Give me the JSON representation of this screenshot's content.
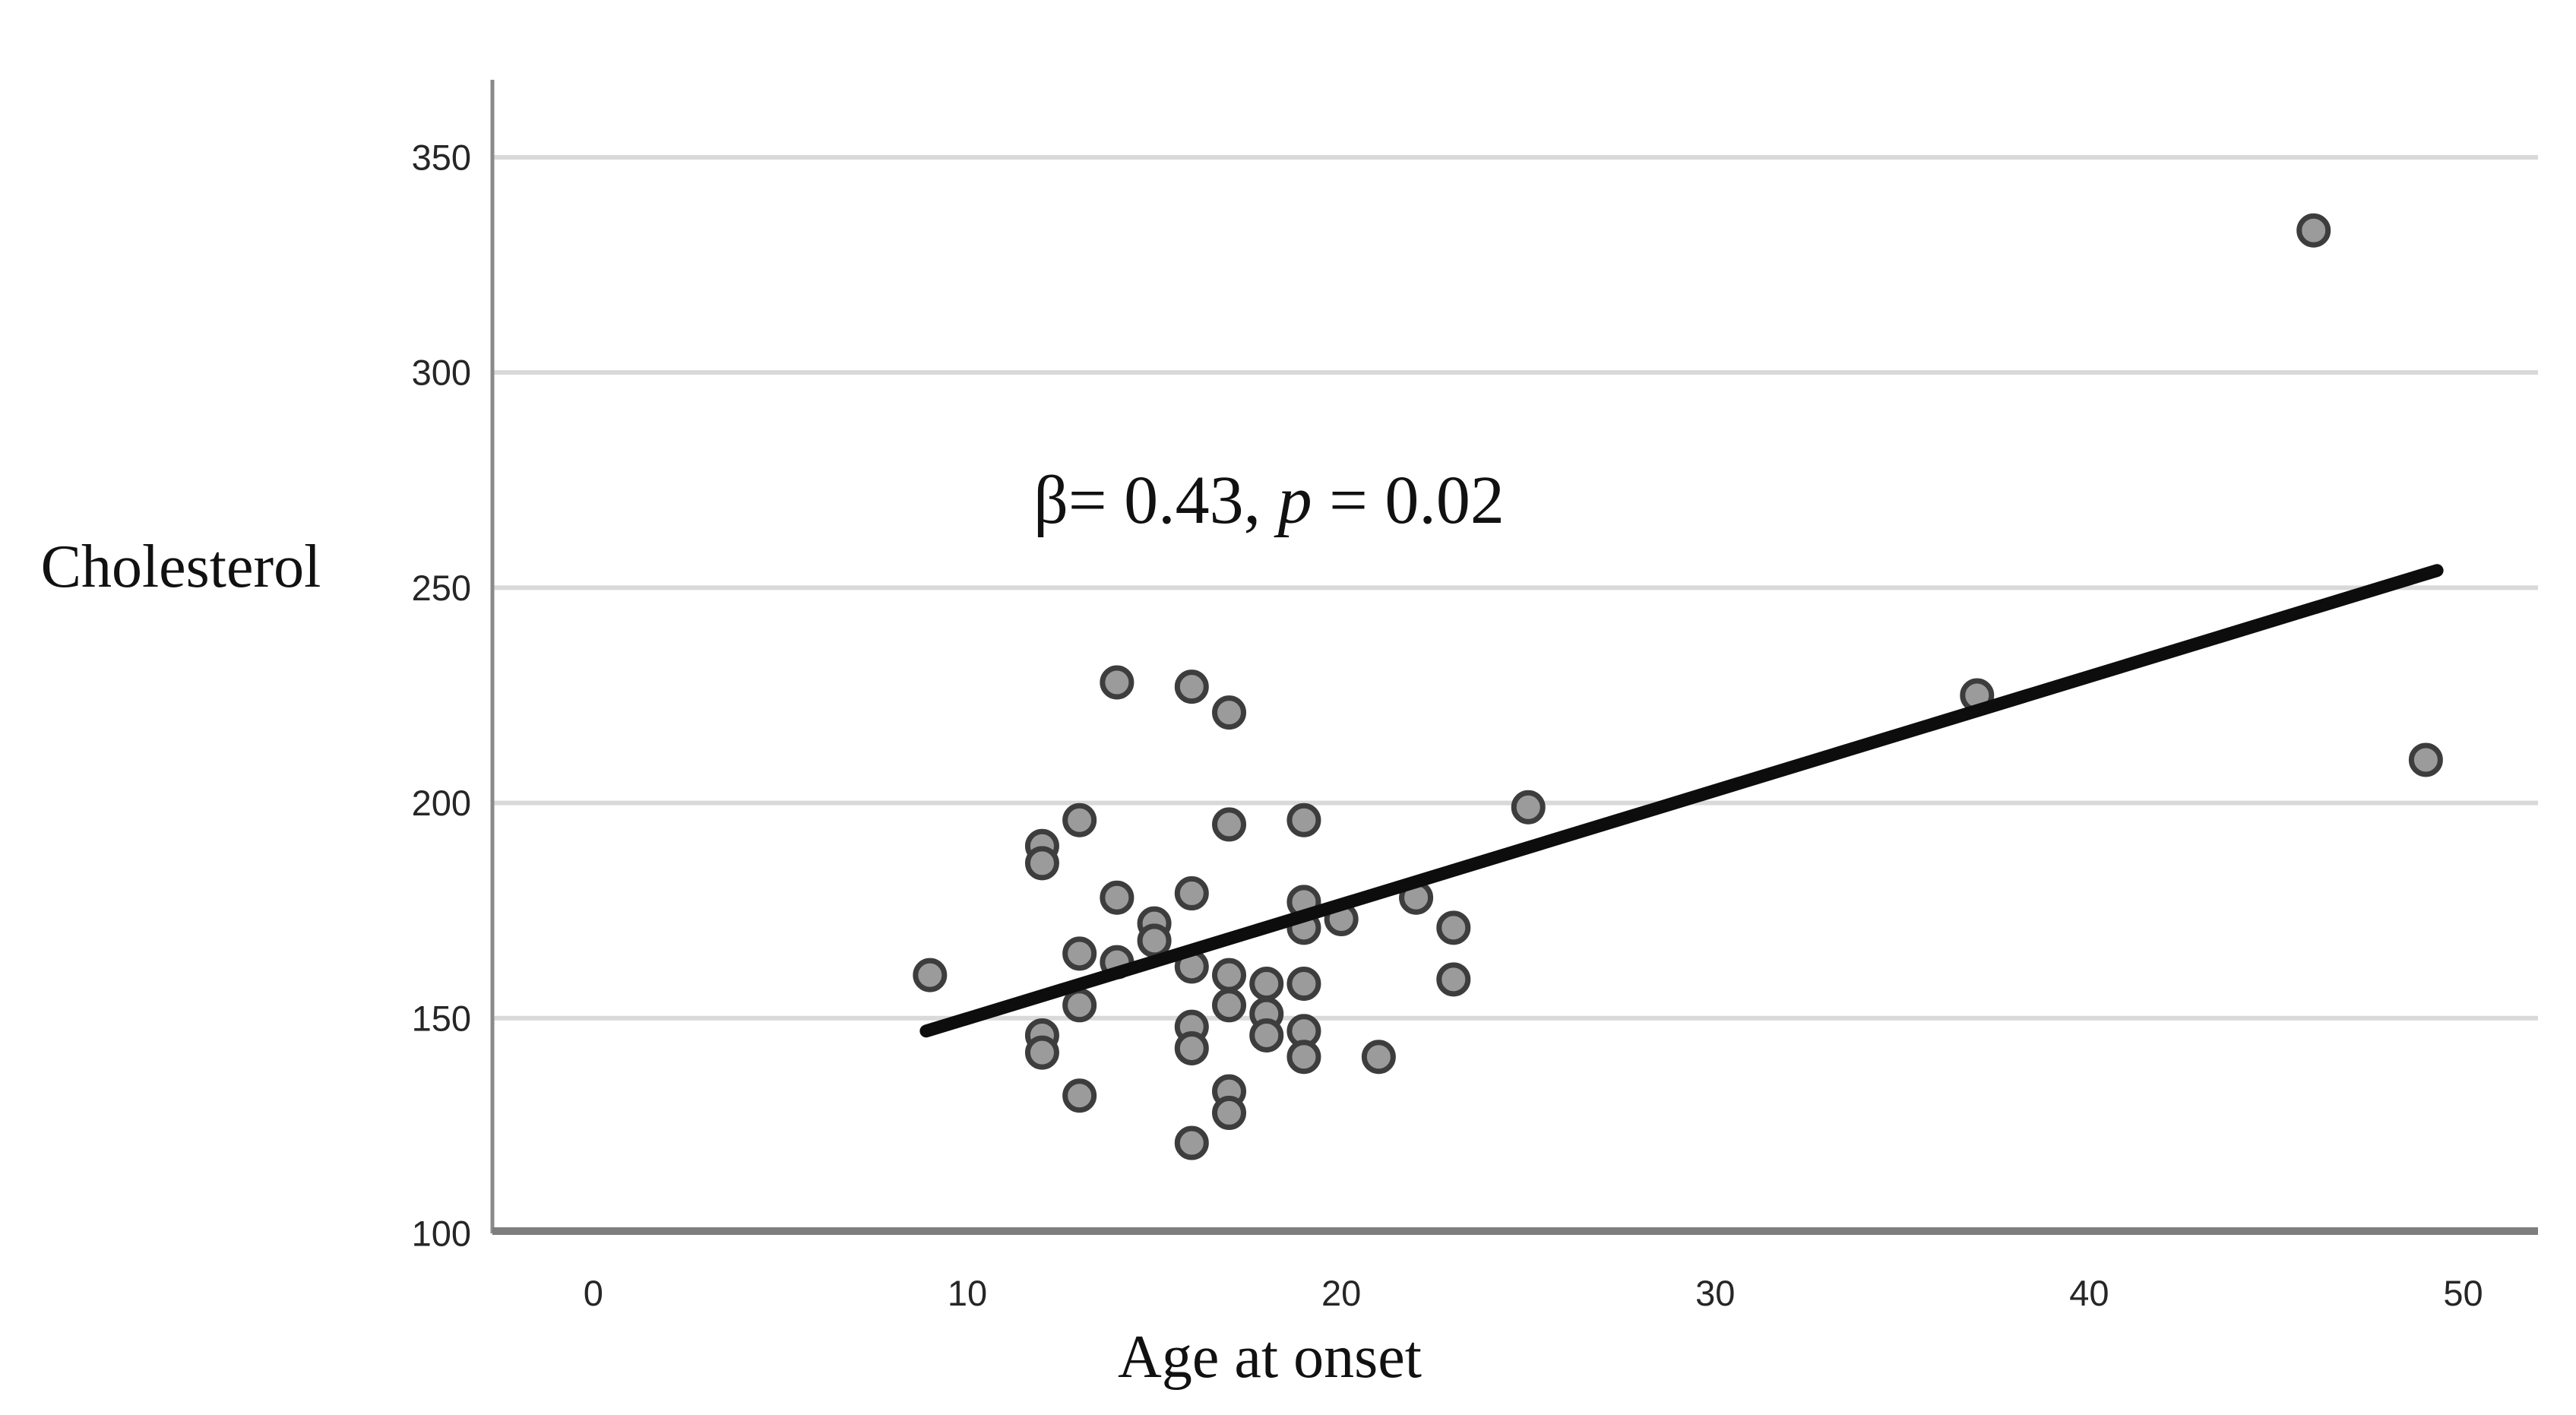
{
  "chart_data": {
    "type": "scatter",
    "title": "",
    "xlabel": "Age at onset",
    "ylabel": "Cholesterol",
    "annotation": {
      "full_text": "β= 0.43, p = 0.02",
      "beta_part": "β= 0.43, ",
      "p_part": "p",
      "value_part": " = 0.02"
    },
    "x_ticks": [
      0,
      10,
      20,
      30,
      40,
      50
    ],
    "y_ticks": [
      100,
      150,
      200,
      250,
      300,
      350
    ],
    "xlim": [
      -2.7,
      52.0
    ],
    "ylim": [
      100,
      368
    ],
    "grid": "horizontal gridlines only",
    "legend": "none",
    "points": [
      [
        9,
        160
      ],
      [
        12,
        190
      ],
      [
        12,
        186
      ],
      [
        12,
        146
      ],
      [
        12,
        142
      ],
      [
        13,
        196
      ],
      [
        13,
        165
      ],
      [
        13,
        153
      ],
      [
        13,
        132
      ],
      [
        14,
        228
      ],
      [
        14,
        178
      ],
      [
        14,
        163
      ],
      [
        15,
        172
      ],
      [
        15,
        168
      ],
      [
        16,
        227
      ],
      [
        16,
        179
      ],
      [
        16,
        162
      ],
      [
        16,
        148
      ],
      [
        16,
        143
      ],
      [
        16,
        121
      ],
      [
        17,
        221
      ],
      [
        17,
        195
      ],
      [
        17,
        160
      ],
      [
        17,
        153
      ],
      [
        17,
        133
      ],
      [
        17,
        128
      ],
      [
        18,
        158
      ],
      [
        18,
        151
      ],
      [
        18,
        146
      ],
      [
        19,
        196
      ],
      [
        19,
        177
      ],
      [
        19,
        171
      ],
      [
        19,
        158
      ],
      [
        19,
        147
      ],
      [
        19,
        141
      ],
      [
        20,
        173
      ],
      [
        21,
        141
      ],
      [
        22,
        178
      ],
      [
        23,
        171
      ],
      [
        23,
        159
      ],
      [
        25,
        199
      ],
      [
        37,
        225
      ],
      [
        46,
        333
      ],
      [
        49,
        210
      ]
    ],
    "regression_line": {
      "x1": 8.9,
      "y1": 147,
      "x2": 49.3,
      "y2": 254
    },
    "colors": {
      "point_fill": "#9b9b9b",
      "point_stroke": "#3d3d3d",
      "gridline": "#d9d9d9",
      "x_axis": "#7e7e7e",
      "y_axis": "#8a8a8a",
      "regression_line": "#0d0d0d",
      "text": "#1f1f1f"
    }
  }
}
